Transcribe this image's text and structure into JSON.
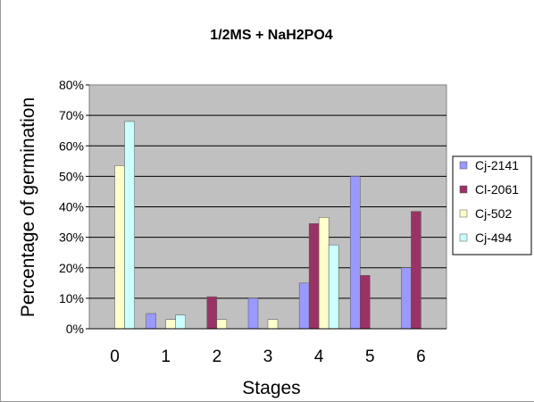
{
  "chart_data": {
    "type": "bar",
    "title": "1/2MS + NaH2PO4",
    "xlabel": "Stages",
    "ylabel": "Percentage of germination",
    "categories": [
      "0",
      "1",
      "2",
      "3",
      "4",
      "5",
      "6"
    ],
    "ylim": [
      0,
      80
    ],
    "yticks": [
      "0%",
      "10%",
      "20%",
      "30%",
      "40%",
      "50%",
      "60%",
      "70%",
      "80%"
    ],
    "grid": true,
    "legend_position": "right",
    "series": [
      {
        "name": "Cj-2141",
        "color": "#9999ff",
        "values": [
          0,
          5,
          0,
          10,
          15,
          50,
          20
        ]
      },
      {
        "name": "Cl-2061",
        "color": "#993366",
        "values": [
          0,
          0,
          10.5,
          0,
          34.5,
          17.5,
          38.5
        ]
      },
      {
        "name": "Cj-502",
        "color": "#ffffcc",
        "values": [
          53.5,
          3,
          3,
          3,
          36.5,
          0,
          0
        ]
      },
      {
        "name": "Cj-494",
        "color": "#ccffff",
        "values": [
          68,
          4.5,
          0,
          0,
          27.5,
          0,
          0
        ]
      }
    ]
  }
}
